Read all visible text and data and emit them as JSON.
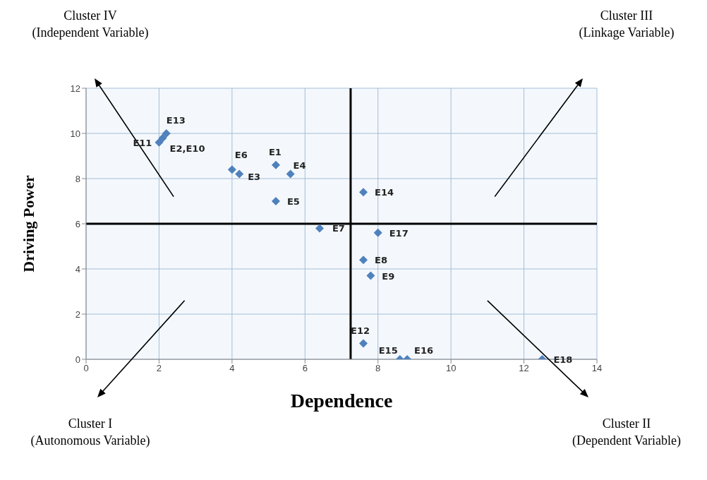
{
  "chart_data": {
    "type": "scatter",
    "xlabel": "Dependence",
    "ylabel": "Driving Power",
    "x": [
      5.2,
      2.1,
      4.2,
      5.6,
      5.2,
      4.0,
      6.4,
      7.6,
      7.8,
      7.6,
      2.0,
      2.2,
      7.6,
      8.6,
      8.8,
      8.0,
      12.5
    ],
    "series": [
      {
        "color": "#4f81bd",
        "values": [
          8.6,
          9.8,
          8.2,
          8.2,
          7.0,
          8.4,
          5.8,
          4.4,
          3.7,
          0.7,
          9.6,
          10,
          7.4,
          0,
          0,
          5.6,
          0
        ]
      }
    ],
    "xlim": [
      0,
      14
    ],
    "xticks": [
      0,
      2,
      4,
      6,
      8,
      10,
      12,
      14
    ],
    "ylim": [
      0,
      12
    ],
    "yticks": [
      0,
      2,
      4,
      6,
      8,
      10,
      12
    ],
    "grid": true,
    "marker": "diamond",
    "legend": false,
    "ref_lines": [
      {
        "axis": "x",
        "value": 7.25,
        "color": "#000000"
      },
      {
        "axis": "y",
        "value": 6,
        "color": "#000000"
      }
    ],
    "annotations": [
      "Cluster IV\n(Independent Variable)",
      "Cluster III\n(Linkage Variable)",
      "Cluster I\n(Autonomous Variable)",
      "Cluster II\n(Dependent Variable)",
      {
        "text": "E1",
        "x": 5.2,
        "y": 8.6
      },
      {
        "text": "E2,E10",
        "x": 2.1,
        "y": 9.8
      },
      {
        "text": "E3",
        "x": 4.2,
        "y": 8.2
      },
      {
        "text": "E4",
        "x": 5.6,
        "y": 8.2
      },
      {
        "text": "E5",
        "x": 5.2,
        "y": 7.0
      },
      {
        "text": "E6",
        "x": 4.0,
        "y": 8.4
      },
      {
        "text": "E7",
        "x": 6.4,
        "y": 5.8
      },
      {
        "text": "E8",
        "x": 7.6,
        "y": 4.4
      },
      {
        "text": "E9",
        "x": 7.8,
        "y": 3.7
      },
      {
        "text": "E11",
        "x": 2.0,
        "y": 9.6
      },
      {
        "text": "E12",
        "x": 7.6,
        "y": 0.7
      },
      {
        "text": "E13",
        "x": 2.2,
        "y": 10
      },
      {
        "text": "E14",
        "x": 7.6,
        "y": 7.4
      },
      {
        "text": "E15",
        "x": 8.6,
        "y": 0
      },
      {
        "text": "E16",
        "x": 8.8,
        "y": 0
      },
      {
        "text": "E17",
        "x": 8.0,
        "y": 5.6
      },
      {
        "text": "E18",
        "x": 12.5,
        "y": 0
      }
    ]
  }
}
